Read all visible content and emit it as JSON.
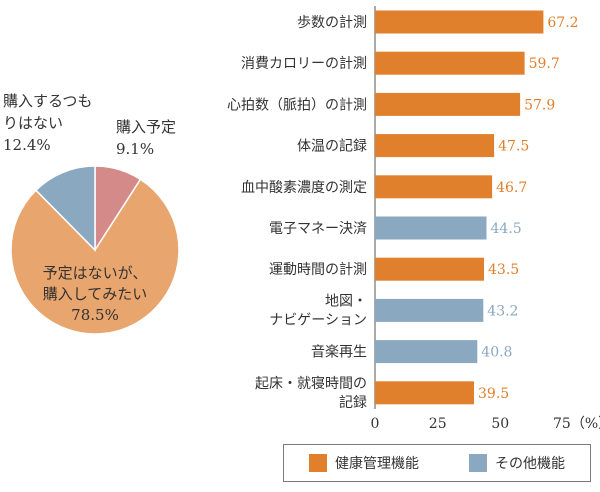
{
  "colors": {
    "health": "#e07f2c",
    "other": "#8aa8bf"
  },
  "legend": [
    {
      "label": "健康管理機能",
      "color": "#e07f2c"
    },
    {
      "label": "その他機能",
      "color": "#8aa8bf"
    }
  ],
  "chart_data": [
    {
      "type": "pie",
      "slices": [
        {
          "label_lines": [
            "購入予定",
            "9.1%"
          ],
          "value": 9.1,
          "color": "#d48a89"
        },
        {
          "label_lines": [
            "予定はないが、",
            "購入してみたい",
            "78.5%"
          ],
          "value": 78.5,
          "color": "#e8a56d"
        },
        {
          "label_lines": [
            "購入するつも",
            "りはない",
            "12.4%"
          ],
          "value": 12.4,
          "color": "#8aa8bf"
        }
      ]
    },
    {
      "type": "bar",
      "orientation": "horizontal",
      "categories": [
        [
          "歩数の計測"
        ],
        [
          "消費カロリーの計測"
        ],
        [
          "心拍数（脈拍）の計測"
        ],
        [
          "体温の記録"
        ],
        [
          "血中酸素濃度の測定"
        ],
        [
          "電子マネー決済"
        ],
        [
          "運動時間の計測"
        ],
        [
          "地図・",
          "ナビゲーション"
        ],
        [
          "音楽再生"
        ],
        [
          "起床・就寝時間の",
          "記録"
        ]
      ],
      "values": [
        67.2,
        59.7,
        57.9,
        47.5,
        46.7,
        44.5,
        43.5,
        43.2,
        40.8,
        39.5
      ],
      "value_labels": [
        "67.2",
        "59.7",
        "57.9",
        "47.5",
        "46.7",
        "44.5",
        "43.5",
        "43.2",
        "40.8",
        "39.5"
      ],
      "groups": [
        "health",
        "health",
        "health",
        "health",
        "health",
        "other",
        "health",
        "other",
        "other",
        "health"
      ],
      "xlim": [
        0,
        75
      ],
      "xticks": [
        0,
        25,
        50,
        75
      ],
      "tick_labels": [
        "0",
        "25",
        "50",
        "75（%）"
      ],
      "grid": false
    }
  ]
}
